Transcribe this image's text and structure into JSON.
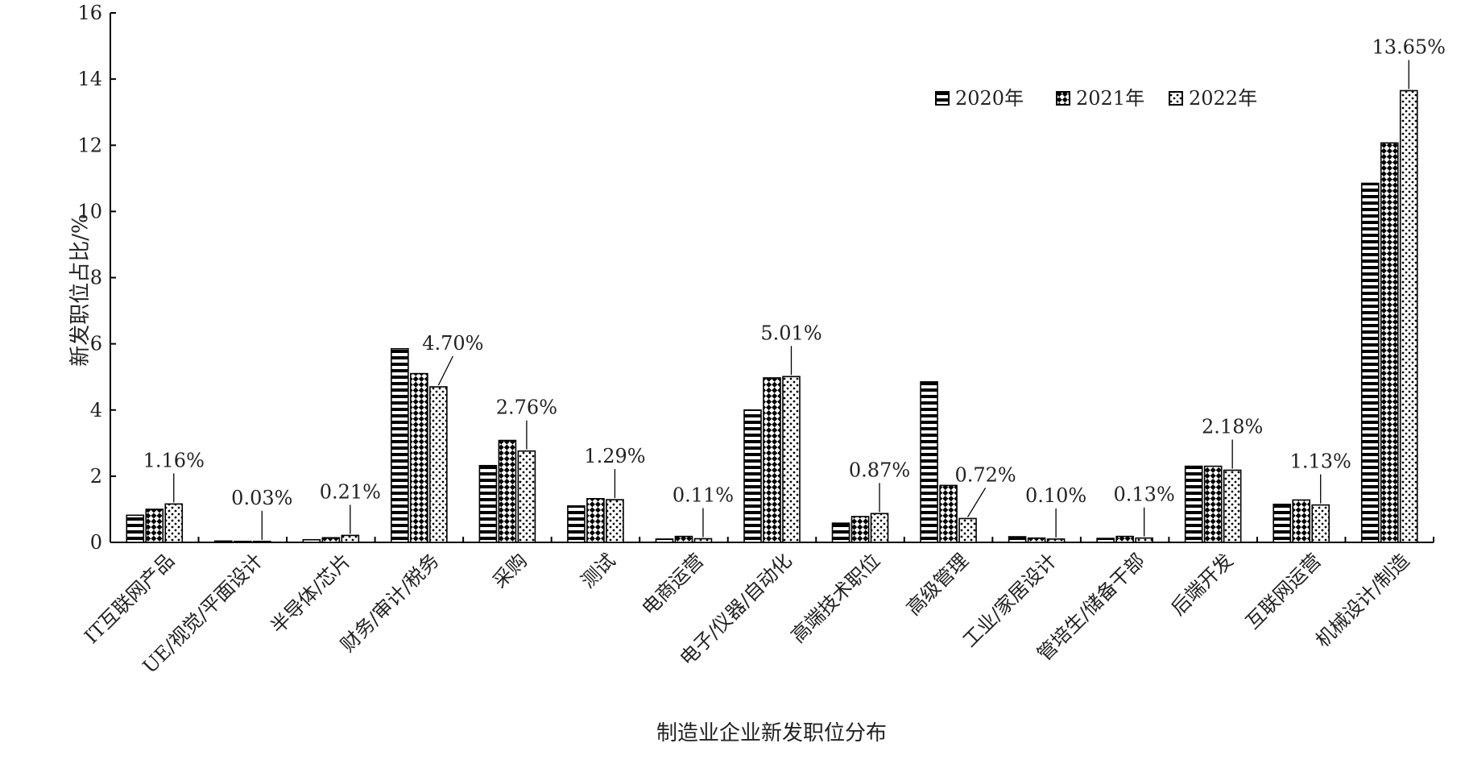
{
  "chart_data": {
    "type": "bar",
    "xlabel": "制造业企业新发职位分布",
    "ylabel": "新发职位占比/%",
    "ylim": [
      0,
      16
    ],
    "yticks": [
      "0",
      "2",
      "4",
      "6",
      "8",
      "10",
      "12",
      "14",
      "16"
    ],
    "grid": false,
    "legend_position": "top-right",
    "categories": [
      "IT互联网产品",
      "UE/视觉/平面设计",
      "半导体/芯片",
      "财务/审计/税务",
      "采购",
      "测试",
      "电商运营",
      "电子/仪器/自动化",
      "高端技术职位",
      "高级管理",
      "工业/家居设计",
      "管培生/储备干部",
      "后端开发",
      "互联网运营",
      "机械设计/制造"
    ],
    "series": [
      {
        "name": "2020年",
        "pattern": "horizontal-stripes",
        "values": [
          0.82,
          0.04,
          0.08,
          5.85,
          2.32,
          1.1,
          0.1,
          4.0,
          0.58,
          4.85,
          0.17,
          0.12,
          2.3,
          1.15,
          10.85
        ]
      },
      {
        "name": "2021年",
        "pattern": "diagonal-checker",
        "values": [
          1.0,
          0.03,
          0.14,
          5.1,
          3.08,
          1.32,
          0.18,
          4.97,
          0.78,
          1.72,
          0.13,
          0.18,
          2.3,
          1.28,
          12.07
        ]
      },
      {
        "name": "2022年",
        "pattern": "dots",
        "values": [
          1.16,
          0.03,
          0.21,
          4.7,
          2.76,
          1.29,
          0.11,
          5.01,
          0.87,
          0.72,
          0.1,
          0.13,
          2.18,
          1.13,
          13.65
        ]
      }
    ],
    "annotations": [
      "1.16%",
      "0.03%",
      "0.21%",
      "4.70%",
      "2.76%",
      "1.29%",
      "0.11%",
      "5.01%",
      "0.87%",
      "0.72%",
      "0.10%",
      "0.13%",
      "2.18%",
      "1.13%",
      "13.65%"
    ],
    "colors": {
      "bar_stroke": "#000000",
      "bar_fill": "#ffffff",
      "text": "#222222"
    }
  }
}
